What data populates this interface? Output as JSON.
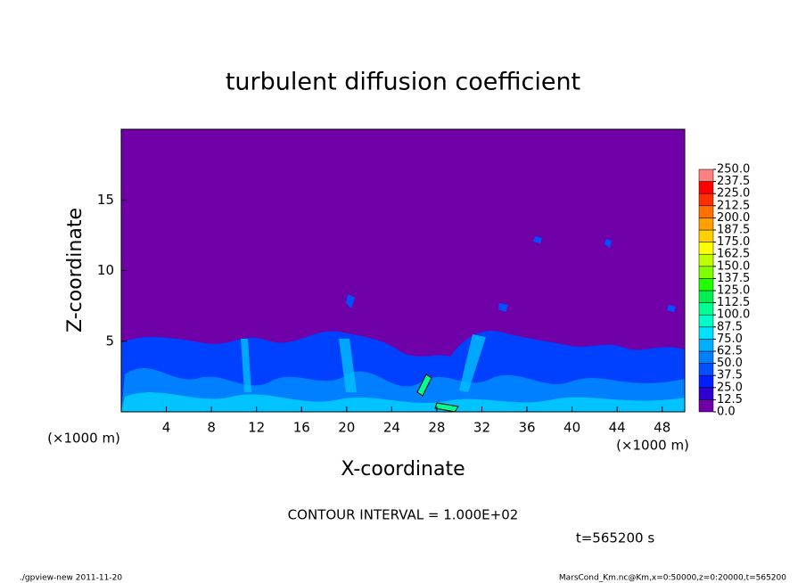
{
  "chart_data": {
    "type": "heatmap",
    "title": "turbulent diffusion coefficient",
    "x_label": "X-coordinate",
    "y_label": "Z-coordinate",
    "x_unit": "(×1000 m)",
    "y_unit": "(×1000 m)",
    "xlim": [
      0,
      50
    ],
    "xticks": [
      4,
      8,
      12,
      16,
      20,
      24,
      28,
      32,
      36,
      40,
      44,
      48
    ],
    "ylim": [
      0,
      20
    ],
    "yticks": [
      5,
      10,
      15
    ],
    "colorbar_ticks": [
      {
        "value": 0,
        "label": "0.0"
      },
      {
        "value": 12.5,
        "label": "12.5"
      },
      {
        "value": 25,
        "label": "25.0"
      },
      {
        "value": 37.5,
        "label": "37.5"
      },
      {
        "value": 50,
        "label": "50.0"
      },
      {
        "value": 62.5,
        "label": "62.5"
      },
      {
        "value": 75,
        "label": "75.0"
      },
      {
        "value": 87.5,
        "label": "87.5"
      },
      {
        "value": 100,
        "label": "100.0"
      },
      {
        "value": 112.5,
        "label": "112.5"
      },
      {
        "value": 125,
        "label": "125.0"
      },
      {
        "value": 137.5,
        "label": "137.5"
      },
      {
        "value": 150,
        "label": "150.0"
      },
      {
        "value": 162.5,
        "label": "162.5"
      },
      {
        "value": 175,
        "label": "175.0"
      },
      {
        "value": 187.5,
        "label": "187.5"
      },
      {
        "value": 200,
        "label": "200.0"
      },
      {
        "value": 212.5,
        "label": "212.5"
      },
      {
        "value": 225,
        "label": "225.0"
      },
      {
        "value": 237.5,
        "label": "237.5"
      },
      {
        "value": 250,
        "label": "250.0"
      }
    ],
    "colors": [
      "#7000a8",
      "#3000d0",
      "#0020ff",
      "#0050ff",
      "#0080ff",
      "#00b0ff",
      "#00e0ff",
      "#00ffc8",
      "#00ff90",
      "#00f050",
      "#20ff00",
      "#80ff00",
      "#c0ff00",
      "#ffff00",
      "#ffd000",
      "#ffa000",
      "#ff7000",
      "#ff3000",
      "#ff0000",
      "#ff8080"
    ],
    "contour_note": "CONTOUR INTERVAL = 1.000E+02",
    "time_label": "t=565200 s",
    "footer_left": "./gpview-new  2011-11-20",
    "footer_right": "MarsCond_Km.nc@Km,x=0:50000,z=0:20000,t=565200"
  }
}
